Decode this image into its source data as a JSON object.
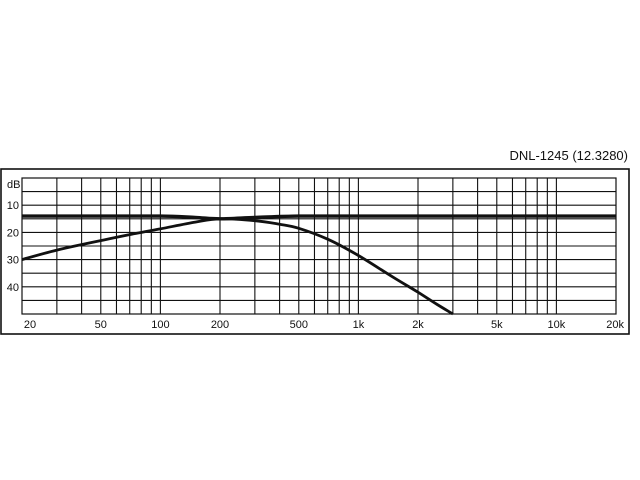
{
  "chart_data": {
    "type": "line",
    "title": "DNL-1245 (12.3280)",
    "ylabel": "dB",
    "x_scale": "log",
    "xlim": [
      20,
      20000
    ],
    "ylim": [
      0,
      50
    ],
    "y_inverted": true,
    "grid": true,
    "x_tick_labels": [
      {
        "value": 20,
        "label": "20"
      },
      {
        "value": 50,
        "label": "50"
      },
      {
        "value": 100,
        "label": "100"
      },
      {
        "value": 200,
        "label": "200"
      },
      {
        "value": 500,
        "label": "500"
      },
      {
        "value": 1000,
        "label": "1k"
      },
      {
        "value": 2000,
        "label": "2k"
      },
      {
        "value": 5000,
        "label": "5k"
      },
      {
        "value": 10000,
        "label": "10k"
      },
      {
        "value": 20000,
        "label": "20k"
      }
    ],
    "y_tick_labels": [
      {
        "value": 10,
        "label": "10"
      },
      {
        "value": 20,
        "label": "20"
      },
      {
        "value": 30,
        "label": "30"
      },
      {
        "value": 40,
        "label": "40"
      }
    ],
    "series": [
      {
        "x": [
          20,
          30,
          50,
          100,
          150,
          200,
          300,
          500,
          1000,
          2000,
          5000,
          10000,
          20000
        ],
        "y": [
          14,
          14,
          14,
          14,
          14.5,
          15,
          14.5,
          14,
          14,
          14,
          14,
          14,
          14
        ]
      },
      {
        "x": [
          20,
          30,
          50,
          70,
          100,
          150,
          200,
          300,
          400,
          500,
          700,
          1000,
          1500,
          2000,
          2500,
          3000
        ],
        "y": [
          30,
          26.5,
          23,
          20.8,
          18.7,
          16.2,
          15,
          15.7,
          17,
          18.5,
          22.5,
          28.5,
          36.5,
          42,
          46.5,
          50
        ]
      }
    ]
  }
}
